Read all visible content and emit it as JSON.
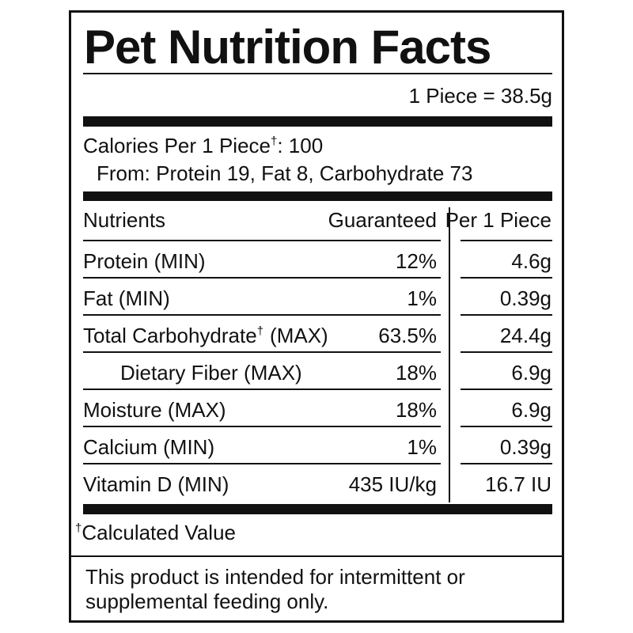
{
  "header": {
    "title": "Pet Nutrition Facts",
    "serving": "1 Piece = 38.5g"
  },
  "calories": {
    "label": "Calories Per 1 Piece",
    "mark": "†",
    "value": ": 100",
    "from": "From: Protein 19, Fat 8, Carbohydrate 73"
  },
  "table": {
    "columns": [
      "Nutrients",
      "Guaranteed",
      "Per 1 Piece"
    ],
    "rows": [
      {
        "name": "Protein (MIN)",
        "guaranteed": "12%",
        "per_piece": "4.6g"
      },
      {
        "name": "Fat (MIN)",
        "guaranteed": "1%",
        "per_piece": "0.39g"
      },
      {
        "name": "Total Carbohydrate",
        "mark": "†",
        "qualifier": "(MAX)",
        "guaranteed": "63.5%",
        "per_piece": "24.4g"
      },
      {
        "name": "Dietary Fiber (MAX)",
        "indent": true,
        "guaranteed": "18%",
        "per_piece": "6.9g"
      },
      {
        "name": "Moisture (MAX)",
        "guaranteed": "18%",
        "per_piece": "6.9g"
      },
      {
        "name": "Calcium (MIN)",
        "guaranteed": "1%",
        "per_piece": "0.39g"
      },
      {
        "name": "Vitamin D (MIN)",
        "guaranteed": "435 IU/kg",
        "per_piece": "16.7 IU"
      }
    ]
  },
  "footnote": {
    "mark": "†",
    "text": "Calculated Value"
  },
  "note": [
    "This product is intended for intermittent or",
    "supplemental feeding only."
  ]
}
